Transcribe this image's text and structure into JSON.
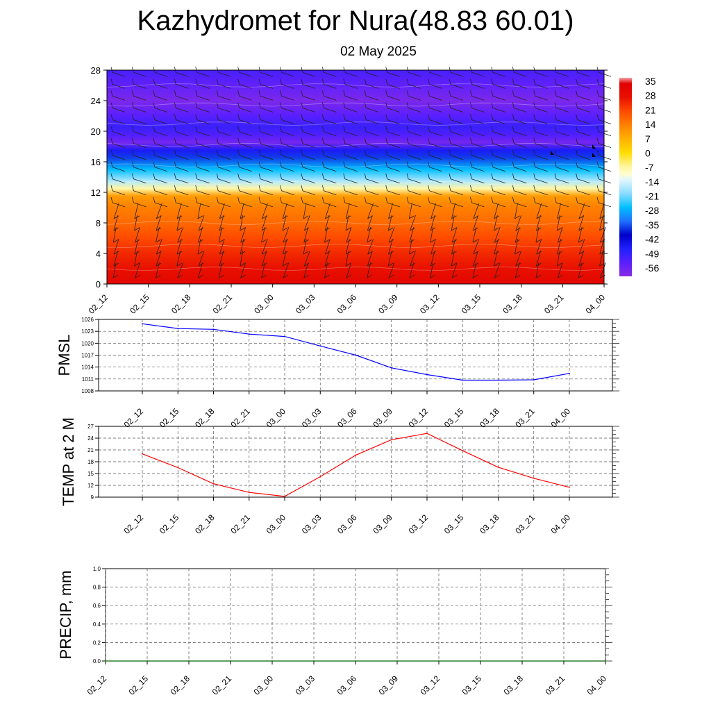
{
  "title": "Kazhydromet for Nura(48.83 60.01)",
  "subtitle": "02 May 2025",
  "time_labels": [
    "02_12",
    "02_15",
    "02_18",
    "02_21",
    "03_00",
    "03_03",
    "03_06",
    "03_09",
    "03_12",
    "03_15",
    "03_18",
    "03_21",
    "04_00"
  ],
  "colors": {
    "pmsl_line": "#0000ff",
    "temp_line": "#ff0000",
    "precip_line": "#006400"
  },
  "chart_data": [
    {
      "type": "heatmap",
      "panel": "cross-section",
      "x": [
        "02_12",
        "02_15",
        "02_18",
        "02_21",
        "03_00",
        "03_03",
        "03_06",
        "03_09",
        "03_12",
        "03_15",
        "03_18",
        "03_21",
        "04_00"
      ],
      "ylim": [
        0,
        28
      ],
      "yticks": [
        0,
        4,
        8,
        12,
        16,
        20,
        24,
        28
      ],
      "colorbar_labels": [
        "35",
        "28",
        "21",
        "14",
        "7",
        "0",
        "-7",
        "-14",
        "-21",
        "-28",
        "-35",
        "-42",
        "-49",
        "-56"
      ],
      "colorbar_range": [
        -63,
        38
      ],
      "temperature_profile": [
        {
          "level": 0,
          "value": 32
        },
        {
          "level": 2,
          "value": 28
        },
        {
          "level": 4,
          "value": 25
        },
        {
          "level": 6,
          "value": 21
        },
        {
          "level": 8,
          "value": 17
        },
        {
          "level": 10,
          "value": 14
        },
        {
          "level": 11.5,
          "value": 10
        },
        {
          "level": 12.5,
          "value": -8
        },
        {
          "level": 13.5,
          "value": -18
        },
        {
          "level": 15,
          "value": -28
        },
        {
          "level": 16.5,
          "value": -38
        },
        {
          "level": 17.5,
          "value": -48
        },
        {
          "level": 18.5,
          "value": -60
        },
        {
          "level": 19.5,
          "value": -55
        },
        {
          "level": 20.5,
          "value": -52
        },
        {
          "level": 22,
          "value": -56
        },
        {
          "level": 24,
          "value": -61
        },
        {
          "level": 26,
          "value": -57
        },
        {
          "level": 28,
          "value": -54
        }
      ],
      "wind_barbs": "present"
    },
    {
      "type": "line",
      "panel": "pmsl",
      "ylabel": "PMSL",
      "x": [
        "02_12",
        "02_15",
        "02_18",
        "02_21",
        "03_00",
        "03_03",
        "03_06",
        "03_09",
        "03_12",
        "03_15",
        "03_18",
        "03_21",
        "04_00"
      ],
      "values": [
        1024.9,
        1023.7,
        1023.5,
        1022.3,
        1021.7,
        1019.3,
        1017.0,
        1013.8,
        1012.1,
        1010.7,
        1010.7,
        1010.8,
        1012.4
      ],
      "ylim": [
        1008,
        1026
      ],
      "yticks": [
        1008,
        1011,
        1014,
        1017,
        1020,
        1023,
        1026
      ],
      "grid": true
    },
    {
      "type": "line",
      "panel": "temp2m",
      "ylabel": "TEMP at 2 M",
      "x": [
        "02_12",
        "02_15",
        "02_18",
        "02_21",
        "03_00",
        "03_03",
        "03_06",
        "03_09",
        "03_12",
        "03_15",
        "03_18",
        "03_21",
        "04_00"
      ],
      "values": [
        20.0,
        16.5,
        12.4,
        10.2,
        9.2,
        14.2,
        19.7,
        23.6,
        25.2,
        20.8,
        16.6,
        13.8,
        11.5
      ],
      "ylim": [
        9,
        27
      ],
      "yticks": [
        9,
        12,
        15,
        18,
        21,
        24,
        27
      ],
      "grid": true
    },
    {
      "type": "line",
      "panel": "precip",
      "ylabel": "PRECIP, mm",
      "x": [
        "02_12",
        "02_15",
        "02_18",
        "02_21",
        "03_00",
        "03_03",
        "03_06",
        "03_09",
        "03_12",
        "03_15",
        "03_18",
        "03_21",
        "04_00"
      ],
      "values": [
        0,
        0,
        0,
        0,
        0,
        0,
        0,
        0,
        0,
        0,
        0,
        0,
        0
      ],
      "ylim": [
        0,
        1
      ],
      "yticks": [
        "0.0",
        "0.2",
        "0.4",
        "0.6",
        "0.8",
        "1.0"
      ],
      "grid": true
    }
  ]
}
